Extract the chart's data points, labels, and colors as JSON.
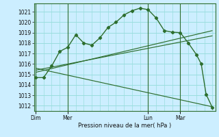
{
  "bg_color": "#cceeff",
  "grid_color": "#99dddd",
  "line_color": "#2d6e2d",
  "marker_color": "#2d6e2d",
  "xlabel_text": "Pression niveau de la mer( hPa )",
  "yticks": [
    1012,
    1013,
    1014,
    1015,
    1016,
    1017,
    1018,
    1019,
    1020,
    1021
  ],
  "ylim": [
    1011.5,
    1021.8
  ],
  "xtick_labels": [
    "Dim",
    "Mer",
    "Lun",
    "Mar"
  ],
  "xtick_positions": [
    0,
    2,
    7,
    9
  ],
  "vline_positions": [
    0,
    2,
    7,
    9
  ],
  "xlim": [
    -0.1,
    11.2
  ],
  "main_series": [
    [
      0,
      1014.7
    ],
    [
      0.5,
      1014.7
    ],
    [
      1,
      1015.8
    ],
    [
      1.5,
      1017.2
    ],
    [
      2,
      1017.6
    ],
    [
      2.5,
      1018.8
    ],
    [
      3,
      1018.0
    ],
    [
      3.5,
      1017.8
    ],
    [
      4,
      1018.5
    ],
    [
      4.5,
      1019.5
    ],
    [
      5,
      1020.0
    ],
    [
      5.5,
      1020.7
    ],
    [
      6,
      1021.1
    ],
    [
      6.5,
      1021.35
    ],
    [
      7,
      1021.2
    ],
    [
      7.5,
      1020.4
    ],
    [
      8,
      1019.2
    ],
    [
      8.5,
      1019.05
    ],
    [
      9,
      1019.0
    ],
    [
      9.5,
      1018.0
    ],
    [
      10,
      1016.9
    ],
    [
      10.3,
      1016.0
    ],
    [
      10.6,
      1013.1
    ],
    [
      11,
      1011.8
    ]
  ],
  "trend_line1": [
    [
      0,
      1015.2
    ],
    [
      11,
      1019.2
    ]
  ],
  "trend_line2": [
    [
      0,
      1015.4
    ],
    [
      11,
      1018.7
    ]
  ],
  "trend_line3": [
    [
      0,
      1015.6
    ],
    [
      11,
      1011.9
    ]
  ]
}
